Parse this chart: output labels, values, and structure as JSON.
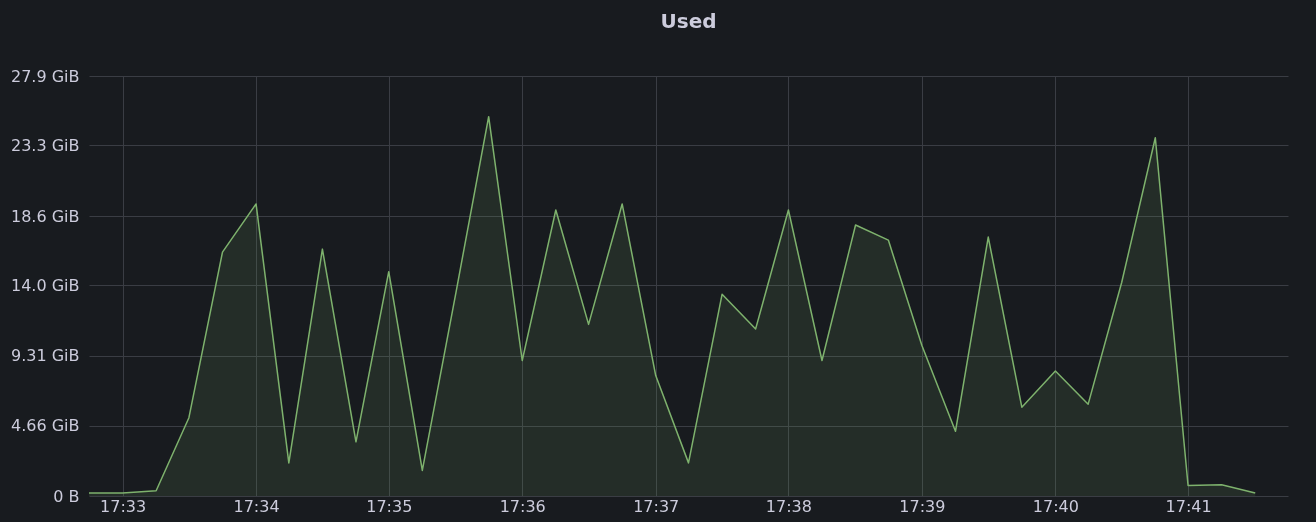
{
  "chart_data": {
    "type": "area",
    "title": "Used",
    "x": [
      17.5458,
      17.55,
      17.5542,
      17.5583,
      17.5625,
      17.5667,
      17.5708,
      17.575,
      17.5792,
      17.5833,
      17.5875,
      17.5917,
      17.5958,
      17.6,
      17.6042,
      17.6083,
      17.6125,
      17.6167,
      17.6208,
      17.625,
      17.6292,
      17.6333,
      17.6375,
      17.6417,
      17.6458,
      17.65,
      17.6542,
      17.6583,
      17.6625,
      17.6667,
      17.6708,
      17.675,
      17.6792,
      17.6833,
      17.6875,
      17.6917
    ],
    "series": [
      {
        "color": "#7eb26d",
        "values": [
          0.2,
          0.2,
          0.35,
          5.2,
          16.2,
          19.4,
          2.2,
          16.4,
          3.6,
          14.9,
          1.7,
          13.5,
          25.2,
          9.0,
          19.0,
          11.4,
          19.4,
          8.0,
          2.2,
          13.4,
          11.1,
          19.0,
          9.0,
          18.0,
          17.0,
          10.0,
          4.3,
          17.2,
          5.9,
          8.3,
          6.1,
          14.2,
          23.8,
          0.7,
          0.75,
          0.2
        ]
      }
    ],
    "xlim": [
      17.5458,
      17.6958
    ],
    "xticks": [
      {
        "value": 17.55,
        "label": "17:33"
      },
      {
        "value": 17.5667,
        "label": "17:34"
      },
      {
        "value": 17.5833,
        "label": "17:35"
      },
      {
        "value": 17.6,
        "label": "17:36"
      },
      {
        "value": 17.6167,
        "label": "17:37"
      },
      {
        "value": 17.6333,
        "label": "17:38"
      },
      {
        "value": 17.65,
        "label": "17:39"
      },
      {
        "value": 17.6667,
        "label": "17:40"
      },
      {
        "value": 17.6833,
        "label": "17:41"
      }
    ],
    "ylim": [
      0,
      27.9
    ],
    "yticks": [
      {
        "value": 0,
        "label": "0 B"
      },
      {
        "value": 4.66,
        "label": "4.66 GiB"
      },
      {
        "value": 9.31,
        "label": "9.31 GiB"
      },
      {
        "value": 14.0,
        "label": "14.0 GiB"
      },
      {
        "value": 18.6,
        "label": "18.6 GiB"
      },
      {
        "value": 23.3,
        "label": "23.3 GiB"
      },
      {
        "value": 27.9,
        "label": "27.9 GiB"
      }
    ],
    "grid": true
  }
}
